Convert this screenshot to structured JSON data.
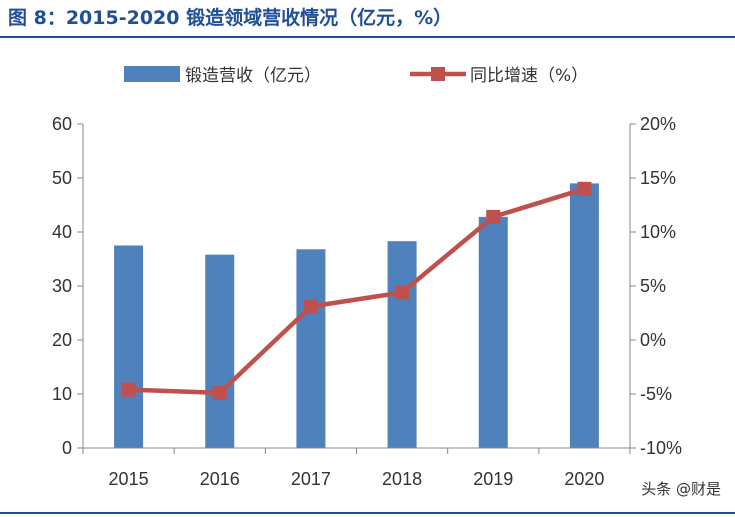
{
  "title": "图 8：2015-2020 锻造领域营收情况（亿元，%）",
  "watermark": "头条 @财是",
  "colors": {
    "bar": "#4f81bd",
    "line": "#c0504d",
    "title": "#1f4e9a"
  },
  "chart_data": {
    "type": "bar",
    "title": "图 8：2015-2020 锻造领域营收情况（亿元，%）",
    "categories": [
      "2015",
      "2016",
      "2017",
      "2018",
      "2019",
      "2020"
    ],
    "series": [
      {
        "name": "锻造营收（亿元）",
        "type": "bar",
        "axis": "left",
        "values": [
          37.5,
          35.8,
          36.8,
          38.3,
          42.8,
          49.0
        ]
      },
      {
        "name": "同比增速（%）",
        "type": "line",
        "axis": "right",
        "marker": "square",
        "values": [
          -4.6,
          -4.9,
          3.1,
          4.4,
          11.4,
          14.0
        ]
      }
    ],
    "ylim_left": [
      0,
      60
    ],
    "yticks_left": [
      "0",
      "10",
      "20",
      "30",
      "40",
      "50",
      "60"
    ],
    "ylim_right": [
      -10,
      20
    ],
    "yticks_right": [
      "-10%",
      "-5%",
      "0%",
      "5%",
      "10%",
      "15%",
      "20%"
    ],
    "grid": false,
    "legend": "top"
  }
}
